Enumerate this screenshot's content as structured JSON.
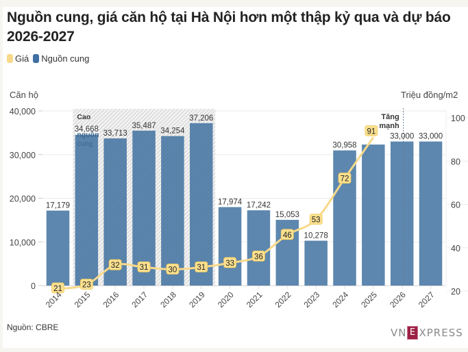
{
  "header": {
    "title": "Nguồn cung, giá căn hộ tại Hà Nội hơn một thập kỷ qua và dự báo 2026-2027"
  },
  "legend": [
    {
      "label": "Giá",
      "color": "#f8d98a"
    },
    {
      "label": "Nguồn cung",
      "color": "#5b85ad"
    }
  ],
  "axes": {
    "left_title": "Căn hộ",
    "right_title": "Triệu đồng/m2",
    "left_ticks": [
      "0",
      "10,000",
      "20,000",
      "30,000",
      "40,000"
    ],
    "right_ticks": [
      "20",
      "40",
      "60",
      "80",
      "100"
    ]
  },
  "annotations": {
    "highlight_band": "Cao kỷ nguồn cung",
    "highlight_line1": "Cao",
    "highlight_line2": "kỷ",
    "highlight_line3": "nguồn",
    "highlight_line4": "cung",
    "forecast_line1": "Tăng",
    "forecast_line2": "mạnh"
  },
  "footer": {
    "source": "Nguồn: CBRE",
    "logo_left": "VN",
    "logo_mid": "E",
    "logo_right": "XPRESS"
  },
  "colors": {
    "bar": "#5b85ad",
    "line": "#f8d98a",
    "label_bg": "#fbe08f",
    "hatch": "#d0d0d0",
    "grid": "#e8e8e8"
  },
  "chart_data": {
    "type": "bar+line",
    "title": "Nguồn cung, giá căn hộ tại Hà Nội hơn một thập kỷ qua và dự báo 2026-2027",
    "categories": [
      "2014",
      "2015",
      "2016",
      "2017",
      "2018",
      "2019",
      "2020",
      "2021",
      "2022",
      "2023",
      "2024",
      "2025",
      "2026",
      "2027"
    ],
    "series": [
      {
        "name": "Nguồn cung",
        "type": "bar",
        "axis": "left",
        "values": [
          17179,
          34668,
          33713,
          35487,
          34254,
          37206,
          17974,
          17242,
          15053,
          10278,
          30958,
          32300,
          33000,
          33000
        ],
        "labels": [
          "17,179",
          "34,668",
          "33,713",
          "35,487",
          "34,254",
          "37,206",
          "17,974",
          "17,242",
          "15,053",
          "10,278",
          "30,958",
          "",
          "33,000",
          "33,000"
        ]
      },
      {
        "name": "Giá",
        "type": "line",
        "axis": "right",
        "values": [
          21,
          23,
          32,
          31,
          30,
          31,
          33,
          36,
          46,
          53,
          72,
          91,
          null,
          null
        ],
        "labels": [
          "21",
          "23",
          "32",
          "31",
          "30",
          "31",
          "33",
          "36",
          "46",
          "53",
          "72",
          "91",
          "",
          ""
        ]
      }
    ],
    "ylabel": "Căn hộ",
    "y2label": "Triệu đồng/m2",
    "ylim": [
      0,
      40000
    ],
    "y2lim": [
      20,
      100
    ],
    "grid": true,
    "legend_position": "top-left",
    "annotations": [
      {
        "text": "Cao kỷ nguồn cung",
        "range": [
          "2015",
          "2019"
        ],
        "style": "hatched band"
      },
      {
        "text": "Tăng mạnh",
        "at": "2026",
        "style": "dashed vertical line"
      }
    ],
    "source": "Nguồn: CBRE"
  }
}
